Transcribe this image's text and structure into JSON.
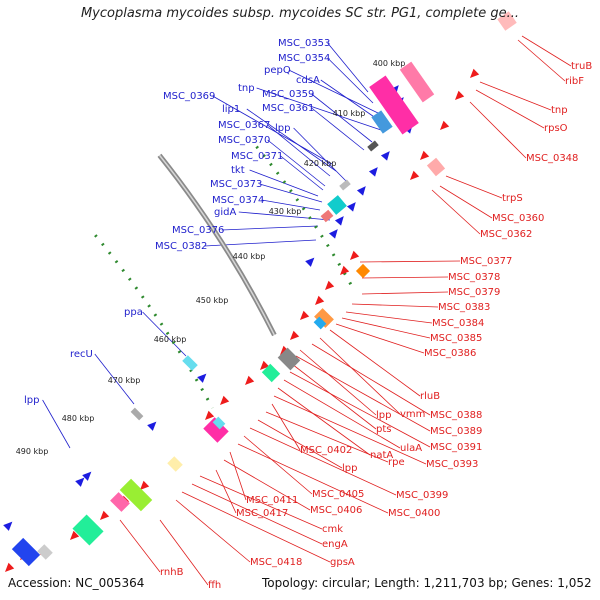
{
  "title": "Mycoplasma mycoides subsp. mycoides SC str. PG1, complete ge...",
  "footer": {
    "accession": "Accession: NC_005364",
    "stats": "Topology: circular; Length: 1,211,703 bp; Genes: 1,052"
  },
  "colors": {
    "forward_label": "#1f1fcc",
    "reverse_label": "#e01f1f",
    "backbone": "#8a8a8a",
    "tick_dots": "#2f8a2f"
  },
  "ticks": [
    "400 kbp",
    "410 kbp",
    "420 kbp",
    "430 kbp",
    "440 kbp",
    "450 kbp",
    "460 kbp",
    "470 kbp",
    "480 kbp",
    "490 kbp"
  ],
  "forward_labels": [
    "MSC_0353",
    "MSC_0354",
    "pepQ",
    "cdsA",
    "tnp",
    "MSC_0359",
    "MSC_0369",
    "MSC_0361",
    "lip1",
    "MSC_0367",
    "lpp",
    "MSC_0370",
    "MSC_0371",
    "tkt",
    "MSC_0373",
    "MSC_0374",
    "gidA",
    "MSC_0376",
    "MSC_0382",
    "ppa",
    "recU",
    "lpp"
  ],
  "reverse_labels": [
    "truB",
    "ribF",
    "tnp",
    "rpsO",
    "MSC_0348",
    "trpS",
    "MSC_0360",
    "MSC_0362",
    "MSC_0377",
    "MSC_0378",
    "MSC_0379",
    "MSC_0383",
    "MSC_0384",
    "MSC_0385",
    "MSC_0386",
    "rluB",
    "vmm",
    "MSC_0388",
    "lpp",
    "MSC_0389",
    "pts",
    "MSC_0391",
    "ulaA",
    "natA",
    "MSC_0393",
    "MSC_0402",
    "rpe",
    "lpp",
    "MSC_0399",
    "MSC_0405",
    "MSC_0400",
    "MSC_0411",
    "MSC_0406",
    "MSC_0417",
    "cmk",
    "engA",
    "gpsA",
    "MSC_0418",
    "rnhB",
    "ffh"
  ]
}
